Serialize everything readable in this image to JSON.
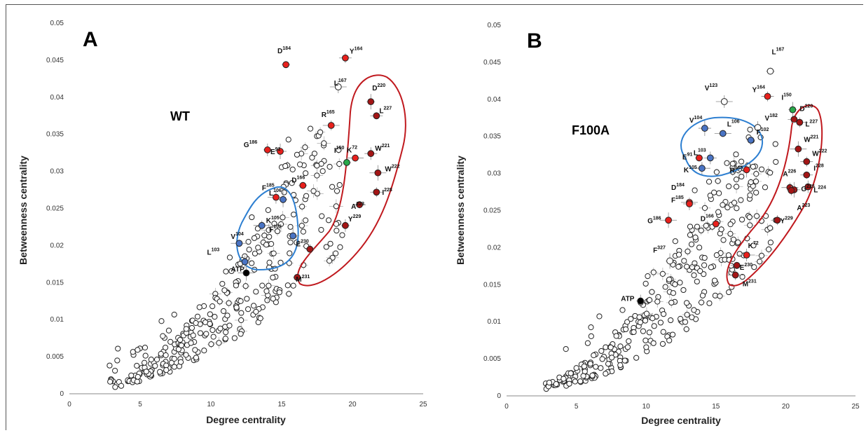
{
  "colors": {
    "red": "#e8201c",
    "darkred": "#a31515",
    "blue": "#4a74c4",
    "green": "#2aa84a",
    "black": "#000000",
    "white": "#ffffff",
    "ring_red": "#c0191e",
    "ring_blue": "#2d7fd1"
  },
  "chart_data": [
    {
      "type": "scatter",
      "panel_label": "A",
      "condition": "WT",
      "xlabel": "Degree centrality",
      "ylabel": "Betweenness centrality",
      "xlim": [
        0,
        25
      ],
      "ylim": [
        0,
        0.05
      ],
      "xticks": [
        "0",
        "5",
        "10",
        "15",
        "20",
        "25"
      ],
      "yticks": [
        "0",
        "0.005",
        "0.01",
        "0.015",
        "0.02",
        "0.025",
        "0.03",
        "0.035",
        "0.04",
        "0.045",
        "0.05"
      ],
      "grid": false,
      "labeled_points": [
        {
          "res": "D",
          "num": "184",
          "x": 15.3,
          "y": 0.0444,
          "color": "red"
        },
        {
          "res": "Y",
          "num": "164",
          "x": 19.5,
          "y": 0.0453,
          "color": "red"
        },
        {
          "res": "L",
          "num": "167",
          "x": 19.0,
          "y": 0.0414,
          "color": "white"
        },
        {
          "res": "D",
          "num": "220",
          "x": 21.3,
          "y": 0.0394,
          "color": "darkred"
        },
        {
          "res": "L",
          "num": "227",
          "x": 21.7,
          "y": 0.0375,
          "color": "darkred"
        },
        {
          "res": "R",
          "num": "165",
          "x": 18.5,
          "y": 0.0362,
          "color": "red"
        },
        {
          "res": "G",
          "num": "186",
          "x": 14.0,
          "y": 0.0329,
          "color": "red"
        },
        {
          "res": "E",
          "num": "91",
          "x": 14.9,
          "y": 0.0327,
          "color": "red"
        },
        {
          "res": "K",
          "num": "72",
          "x": 20.2,
          "y": 0.0318,
          "color": "red"
        },
        {
          "res": "I",
          "num": "150",
          "x": 19.6,
          "y": 0.0312,
          "color": "green"
        },
        {
          "res": "W",
          "num": "221",
          "x": 21.3,
          "y": 0.0324,
          "color": "darkred"
        },
        {
          "res": "W",
          "num": "222",
          "x": 21.8,
          "y": 0.0298,
          "color": "darkred"
        },
        {
          "res": "D",
          "num": "166",
          "x": 16.5,
          "y": 0.0281,
          "color": "red"
        },
        {
          "res": "I",
          "num": "228",
          "x": 21.7,
          "y": 0.0272,
          "color": "darkred"
        },
        {
          "res": "F",
          "num": "185",
          "x": 14.6,
          "y": 0.0265,
          "color": "red"
        },
        {
          "res": "L",
          "num": "106",
          "x": 15.1,
          "y": 0.0262,
          "color": "blue"
        },
        {
          "res": "A",
          "num": "223",
          "x": 20.5,
          "y": 0.0255,
          "color": "darkred"
        },
        {
          "res": "K",
          "num": "105",
          "x": 13.6,
          "y": 0.0227,
          "color": "blue"
        },
        {
          "res": "Y",
          "num": "229",
          "x": 19.5,
          "y": 0.0227,
          "color": "darkred"
        },
        {
          "res": "F",
          "num": "102",
          "x": 15.8,
          "y": 0.0213,
          "color": "blue"
        },
        {
          "res": "V",
          "num": "104",
          "x": 12.0,
          "y": 0.0203,
          "color": "blue"
        },
        {
          "res": "E",
          "num": "230",
          "x": 17.0,
          "y": 0.0195,
          "color": "darkred"
        },
        {
          "res": "L",
          "num": "103",
          "x": 12.4,
          "y": 0.0178,
          "color": "blue"
        },
        {
          "res": "ATP",
          "num": "",
          "x": 12.5,
          "y": 0.0163,
          "color": "black"
        },
        {
          "res": "M",
          "num": "231",
          "x": 16.1,
          "y": 0.0157,
          "color": "darkred"
        }
      ]
    },
    {
      "type": "scatter",
      "panel_label": "B",
      "condition": "F100A",
      "xlabel": "Degree centrality",
      "ylabel": "Betweenness centrality",
      "xlim": [
        0,
        25
      ],
      "ylim": [
        0,
        0.05
      ],
      "xticks": [
        "0",
        "5",
        "10",
        "15",
        "20",
        "25"
      ],
      "yticks": [
        "0",
        "0.005",
        "0.01",
        "0.015",
        "0.02",
        "0.025",
        "0.03",
        "0.035",
        "0.04",
        "0.045",
        "0.05"
      ],
      "grid": false,
      "labeled_points": [
        {
          "res": "L",
          "num": "167",
          "x": 18.9,
          "y": 0.0438,
          "color": "white"
        },
        {
          "res": "Y",
          "num": "164",
          "x": 18.7,
          "y": 0.0404,
          "color": "red"
        },
        {
          "res": "V",
          "num": "123",
          "x": 15.6,
          "y": 0.0397,
          "color": "white"
        },
        {
          "res": "I",
          "num": "150",
          "x": 20.5,
          "y": 0.0386,
          "color": "green"
        },
        {
          "res": "D",
          "num": "220",
          "x": 20.6,
          "y": 0.0373,
          "color": "darkred"
        },
        {
          "res": "L",
          "num": "227",
          "x": 21.0,
          "y": 0.0369,
          "color": "darkred"
        },
        {
          "res": "V",
          "num": "182",
          "x": 18.0,
          "y": 0.0362,
          "color": "white"
        },
        {
          "res": "V",
          "num": "104",
          "x": 14.2,
          "y": 0.0361,
          "color": "blue"
        },
        {
          "res": "L",
          "num": "106",
          "x": 15.5,
          "y": 0.0354,
          "color": "blue"
        },
        {
          "res": "F",
          "num": "102",
          "x": 17.5,
          "y": 0.0345,
          "color": "blue"
        },
        {
          "res": "L",
          "num": "103",
          "x": 14.6,
          "y": 0.0321,
          "color": "blue"
        },
        {
          "res": "W",
          "num": "221",
          "x": 20.9,
          "y": 0.0333,
          "color": "darkred"
        },
        {
          "res": "E",
          "num": "91",
          "x": 13.8,
          "y": 0.0321,
          "color": "red"
        },
        {
          "res": "W",
          "num": "222",
          "x": 21.5,
          "y": 0.0316,
          "color": "darkred"
        },
        {
          "res": "K",
          "num": "105",
          "x": 14.0,
          "y": 0.0307,
          "color": "blue"
        },
        {
          "res": "R",
          "num": "165",
          "x": 17.2,
          "y": 0.0305,
          "color": "red"
        },
        {
          "res": "I",
          "num": "228",
          "x": 21.5,
          "y": 0.0298,
          "color": "darkred"
        },
        {
          "res": "A",
          "num": "226",
          "x": 20.3,
          "y": 0.0281,
          "color": "darkred"
        },
        {
          "res": "L",
          "num": "224",
          "x": 21.6,
          "y": 0.0282,
          "color": "darkred"
        },
        {
          "res": "G",
          "num": "225",
          "x": 20.6,
          "y": 0.0278,
          "color": "darkred"
        },
        {
          "res": "D",
          "num": "184",
          "x": 13.1,
          "y": 0.0261,
          "color": "red"
        },
        {
          "res": "A",
          "num": "223",
          "x": 20.4,
          "y": 0.0277,
          "color": "darkred"
        },
        {
          "res": "F",
          "num": "185",
          "x": 13.1,
          "y": 0.0259,
          "color": "red"
        },
        {
          "res": "G",
          "num": "186",
          "x": 11.6,
          "y": 0.0237,
          "color": "red"
        },
        {
          "res": "D",
          "num": "166",
          "x": 15.0,
          "y": 0.0232,
          "color": "red"
        },
        {
          "res": "Y",
          "num": "229",
          "x": 19.4,
          "y": 0.0237,
          "color": "darkred"
        },
        {
          "res": "K",
          "num": "72",
          "x": 17.2,
          "y": 0.019,
          "color": "red"
        },
        {
          "res": "F",
          "num": "327",
          "x": 11.7,
          "y": 0.0182,
          "color": "white"
        },
        {
          "res": "E",
          "num": "230",
          "x": 16.5,
          "y": 0.0176,
          "color": "darkred"
        },
        {
          "res": "M",
          "num": "231",
          "x": 16.4,
          "y": 0.0163,
          "color": "darkred"
        },
        {
          "res": "ATP",
          "num": "",
          "x": 9.6,
          "y": 0.0128,
          "color": "black"
        }
      ]
    }
  ]
}
